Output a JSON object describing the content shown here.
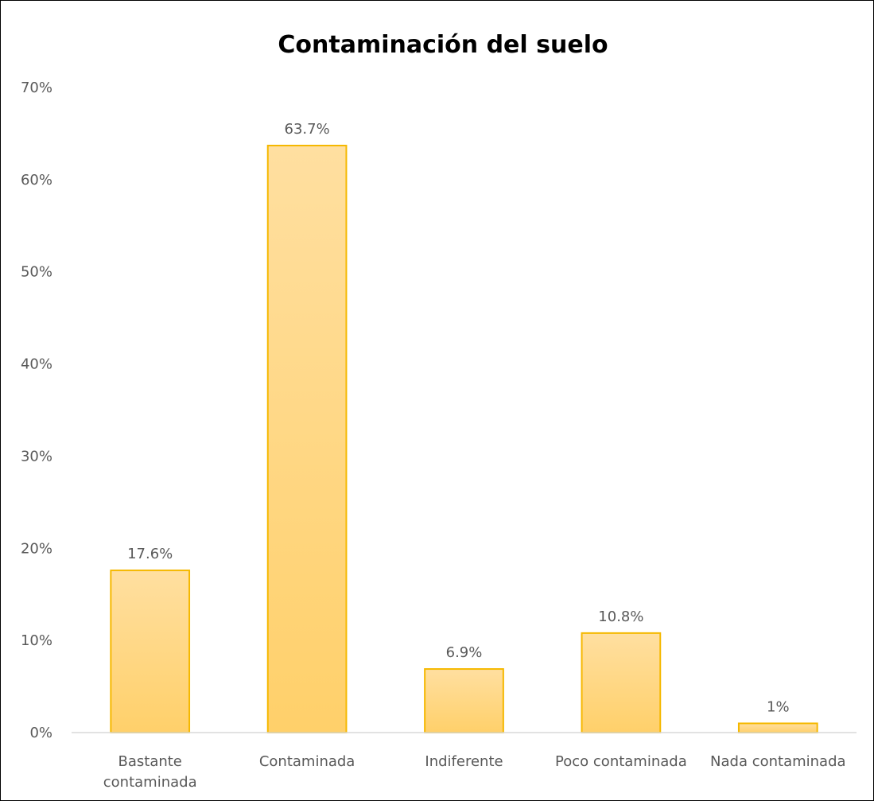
{
  "chart_data": {
    "type": "bar",
    "title": "Contaminación del suelo",
    "categories": [
      "Bastante contaminada",
      "Contaminada",
      "Indiferente",
      "Poco contaminada",
      "Nada contaminada"
    ],
    "category_lines": [
      [
        "Bastante",
        "contaminada"
      ],
      [
        "Contaminada"
      ],
      [
        "Indiferente"
      ],
      [
        "Poco contaminada"
      ],
      [
        "Nada contaminada"
      ]
    ],
    "values": [
      17.6,
      63.7,
      6.9,
      10.8,
      1
    ],
    "data_labels": [
      "17.6%",
      "63.7%",
      "6.9%",
      "10.8%",
      "1%"
    ],
    "yticks": [
      0,
      10,
      20,
      30,
      40,
      50,
      60,
      70
    ],
    "ytick_labels": [
      "0%",
      "10%",
      "20%",
      "30%",
      "40%",
      "50%",
      "60%",
      "70%"
    ],
    "ylim": [
      0,
      70
    ],
    "xlabel": "",
    "ylabel": "",
    "grid": false,
    "legend": "none",
    "colors": {
      "bar_fill_top": "#FFDFA0",
      "bar_fill_bottom": "#FFD06A",
      "bar_stroke": "#F5B800",
      "axis": "#D9D9D9",
      "text": "#595959"
    }
  }
}
